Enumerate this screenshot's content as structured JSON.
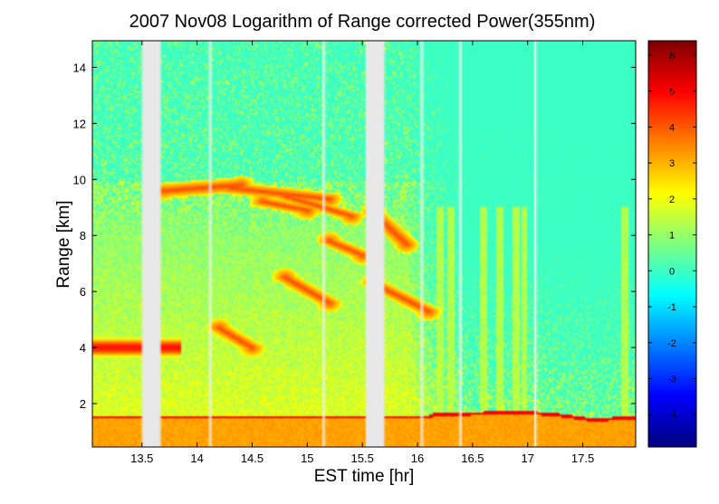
{
  "chart_data": {
    "type": "heatmap",
    "title": "2007 Nov08  Logarithm of Range corrected Power(355nm)",
    "xlabel": "EST time [hr]",
    "ylabel": "Range [km]",
    "xlim": [
      13.05,
      17.98
    ],
    "ylim": [
      0.45,
      14.95
    ],
    "xticks": [
      13.5,
      14,
      14.5,
      15,
      15.5,
      16,
      16.5,
      17,
      17.5
    ],
    "xtick_labels": [
      "13.5",
      "14",
      "14.5",
      "15",
      "15.5",
      "16",
      "16.5",
      "17",
      "17.5"
    ],
    "yticks": [
      2,
      4,
      6,
      8,
      10,
      12,
      14
    ],
    "ytick_labels": [
      "2",
      "4",
      "6",
      "8",
      "10",
      "12",
      "14"
    ],
    "colorbar": {
      "colormap": "jet",
      "range": [
        -4.9,
        6.4
      ],
      "ticks": [
        -4,
        -3,
        -2,
        -1,
        0,
        1,
        2,
        3,
        4,
        5,
        6
      ],
      "tick_labels": [
        "-4",
        "-3",
        "-2",
        "-1",
        "0",
        "1",
        "2",
        "3",
        "4",
        "5",
        "6"
      ]
    },
    "data_gaps": [
      [
        13.5,
        13.67
      ],
      [
        15.53,
        15.7
      ]
    ],
    "thin_gaps": [
      14.12,
      15.15,
      16.04,
      16.39,
      17.07
    ],
    "boundary_layer_top_km": [
      {
        "x": 13.05,
        "y": 1.45
      },
      {
        "x": 16.1,
        "y": 1.45
      },
      {
        "x": 16.15,
        "y": 1.55
      },
      {
        "x": 17.0,
        "y": 1.62
      },
      {
        "x": 17.3,
        "y": 1.52
      },
      {
        "x": 17.6,
        "y": 1.35
      },
      {
        "x": 17.98,
        "y": 1.45
      }
    ],
    "features": [
      {
        "name": "low cloud",
        "x": [
          13.05,
          13.85
        ],
        "y": [
          3.6,
          4.6
        ],
        "value": 4.5
      },
      {
        "name": "cirrus layer",
        "x": [
          13.6,
          15.3
        ],
        "y": [
          9.2,
          9.9
        ],
        "value": 4.5
      },
      {
        "name": "aerosol streaks",
        "x": [
          14.6,
          16.1
        ],
        "y": [
          5.0,
          9.5
        ],
        "value": 4.0
      }
    ],
    "grid": false
  }
}
